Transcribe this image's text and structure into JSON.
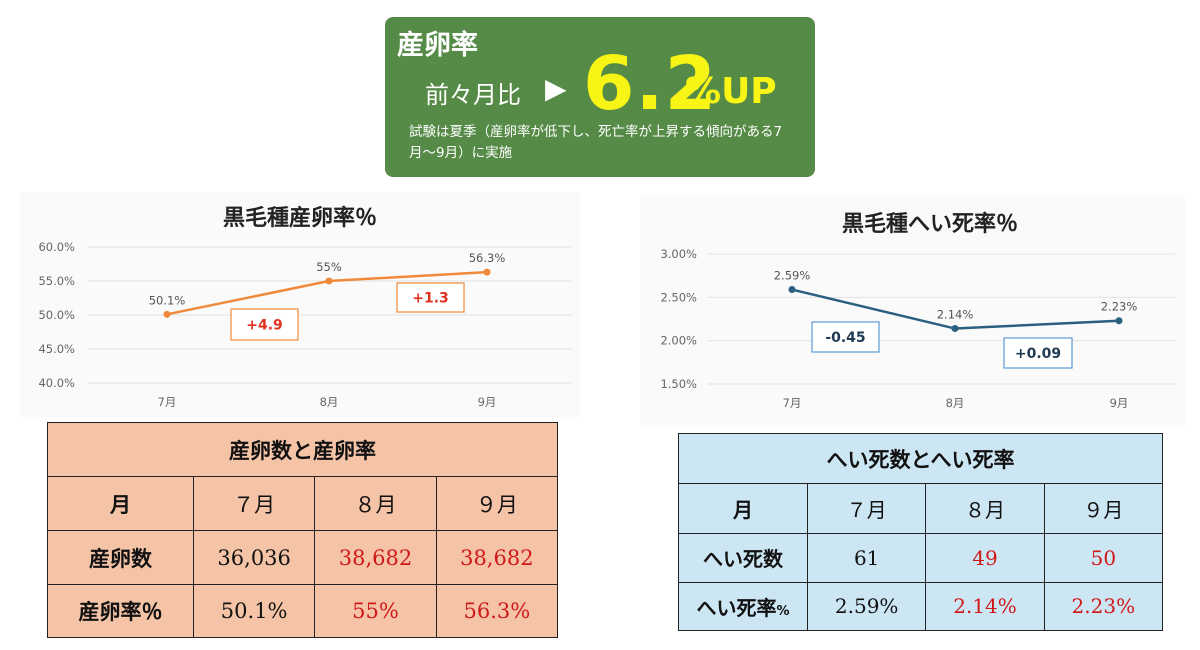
{
  "banner": {
    "title": "産卵率",
    "compare_label": "前々月比",
    "arrow": "▶",
    "big_value": "6.2",
    "unit": "%UP",
    "note": "試験は夏季（産卵率が低下し、死亡率が上昇する傾向がある7月〜9月）に実施",
    "colors": {
      "background": "#568b47",
      "highlight": "#f7f416"
    }
  },
  "chart_data": [
    {
      "type": "line",
      "title": "黒毛種産卵率％",
      "categories": [
        "7月",
        "8月",
        "9月"
      ],
      "series": [
        {
          "values": [
            50.1,
            55,
            56.3
          ],
          "color": "#f08a3a"
        }
      ],
      "data_labels": [
        "50.1%",
        "55%",
        "56.3%"
      ],
      "ylim": [
        40,
        60
      ],
      "yticks": [
        "60.0%",
        "55.0%",
        "50.0%",
        "45.0%",
        "40.0%"
      ],
      "annotations": [
        "+4.9",
        "+1.3"
      ],
      "annotation_color": "#e0301e",
      "grid": true
    },
    {
      "type": "line",
      "title": "黒毛種へい死率％",
      "categories": [
        "7月",
        "8月",
        "9月"
      ],
      "series": [
        {
          "values": [
            2.59,
            2.14,
            2.23
          ],
          "color": "#2b5f80"
        }
      ],
      "data_labels": [
        "2.59%",
        "2.14%",
        "2.23%"
      ],
      "ylim": [
        1.5,
        3.0
      ],
      "yticks": [
        "3.00%",
        "2.50%",
        "2.00%",
        "1.50%"
      ],
      "annotations": [
        "-0.45",
        "+0.09"
      ],
      "annotation_color": "#1f3a52",
      "grid": true
    }
  ],
  "tables": {
    "left": {
      "caption": "産卵数と産卵率",
      "header": [
        "月",
        "７月",
        "８月",
        "９月"
      ],
      "rows": [
        {
          "label": "産卵数",
          "cells": [
            "36,036",
            "38,682",
            "38,682"
          ]
        },
        {
          "label": "産卵率％",
          "cells": [
            "50.1%",
            "55%",
            "56.3%"
          ]
        }
      ]
    },
    "right": {
      "caption": "へい死数とへい死率",
      "header": [
        "月",
        "７月",
        "８月",
        "９月"
      ],
      "rows": [
        {
          "label": "へい死数",
          "cells": [
            "61",
            "49",
            "50"
          ]
        },
        {
          "label": "へい死率",
          "label_suffix": "%",
          "cells": [
            "2.59%",
            "2.14%",
            "2.23%"
          ]
        }
      ]
    }
  }
}
